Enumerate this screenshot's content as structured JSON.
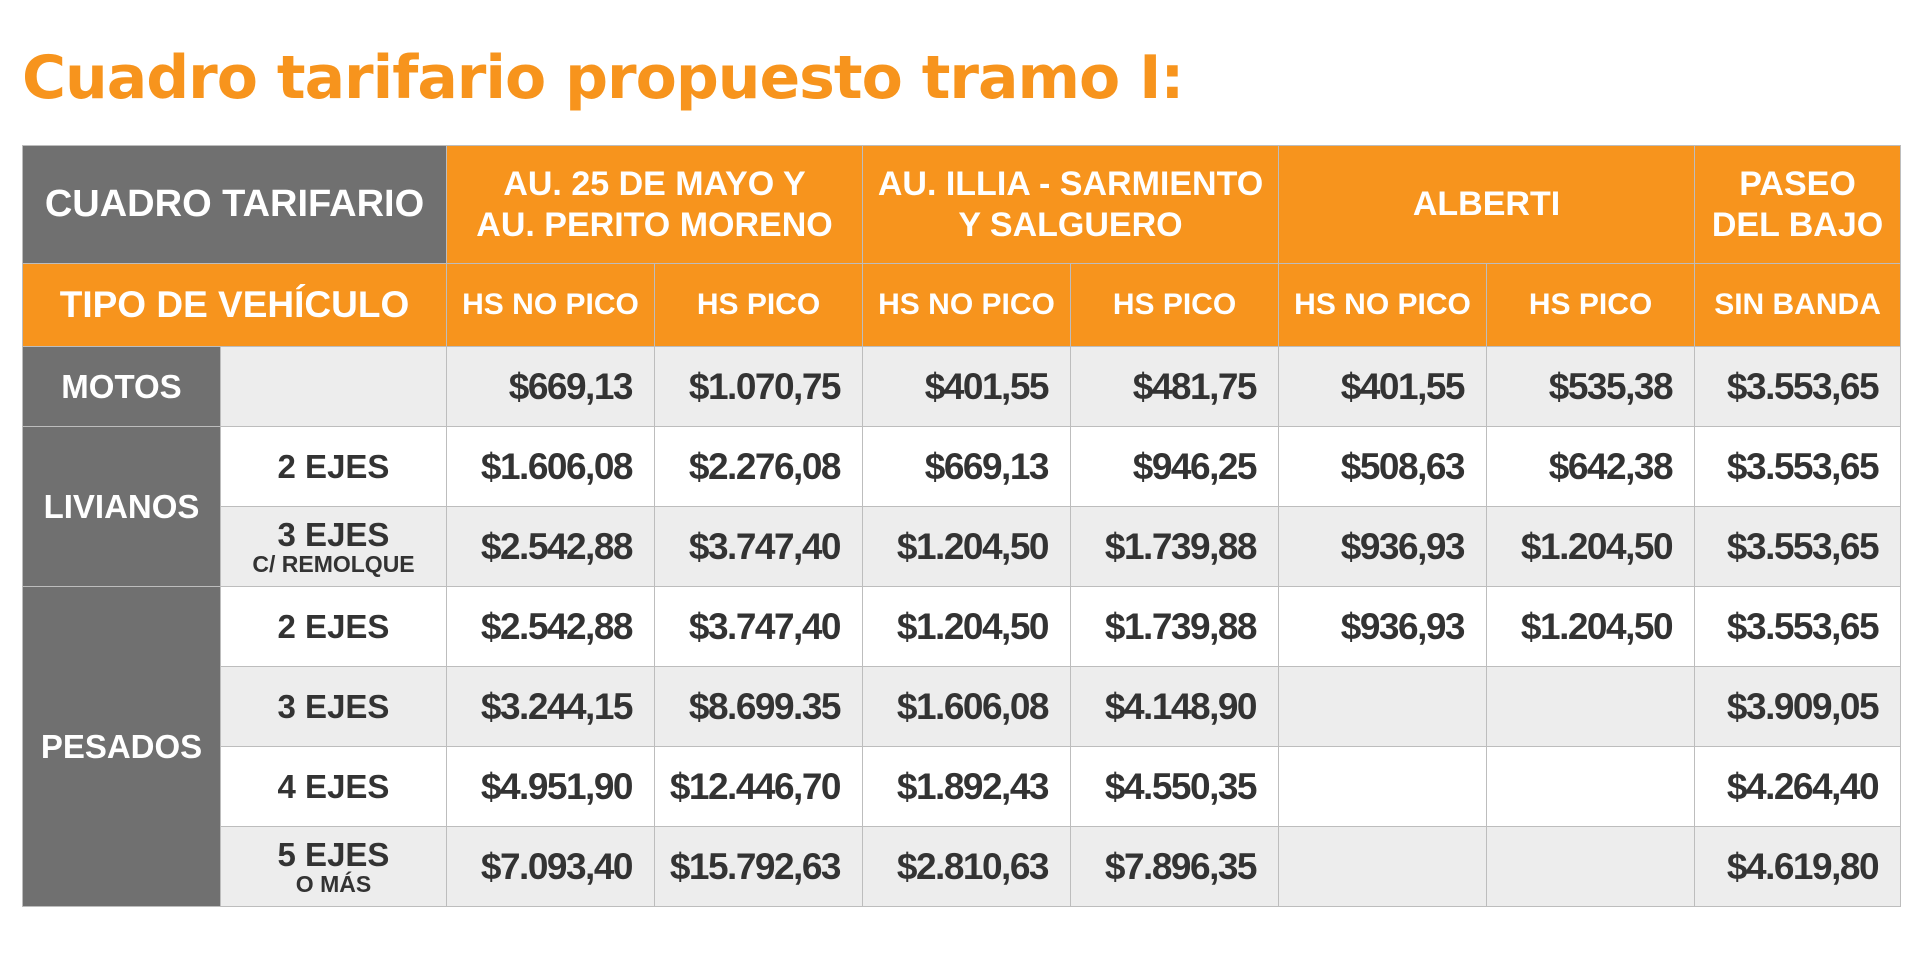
{
  "title": "Cuadro tarifario propuesto tramo I:",
  "header": {
    "corner_label": "CUADRO TARIFARIO",
    "type_label": "TIPO DE VEHÍCULO",
    "groups": [
      {
        "line1": "AU. 25 DE MAYO Y",
        "line2": "AU. PERITO MORENO"
      },
      {
        "line1": "AU. ILLIA - SARMIENTO",
        "line2": "Y SALGUERO"
      },
      {
        "line1": "ALBERTI",
        "line2": ""
      },
      {
        "line1": "PASEO",
        "line2": "DEL BAJO"
      }
    ],
    "subheaders": [
      "HS NO PICO",
      "HS PICO",
      "HS NO PICO",
      "HS PICO",
      "HS NO PICO",
      "HS PICO",
      "SIN BANDA"
    ]
  },
  "categories": {
    "motos": "MOTOS",
    "livianos": "LIVIANOS",
    "pesados": "PESADOS"
  },
  "rows": [
    {
      "sub": "",
      "note": "",
      "values": [
        "$669,13",
        "$1.070,75",
        "$401,55",
        "$481,75",
        "$401,55",
        "$535,38",
        "$3.553,65"
      ]
    },
    {
      "sub": "2 EJES",
      "note": "",
      "values": [
        "$1.606,08",
        "$2.276,08",
        "$669,13",
        "$946,25",
        "$508,63",
        "$642,38",
        "$3.553,65"
      ]
    },
    {
      "sub": "3 EJES",
      "note": "C/ REMOLQUE",
      "values": [
        "$2.542,88",
        "$3.747,40",
        "$1.204,50",
        "$1.739,88",
        "$936,93",
        "$1.204,50",
        "$3.553,65"
      ]
    },
    {
      "sub": "2 EJES",
      "note": "",
      "values": [
        "$2.542,88",
        "$3.747,40",
        "$1.204,50",
        "$1.739,88",
        "$936,93",
        "$1.204,50",
        "$3.553,65"
      ]
    },
    {
      "sub": "3 EJES",
      "note": "",
      "values": [
        "$3.244,15",
        "$8.699.35",
        "$1.606,08",
        "$4.148,90",
        "",
        "",
        "$3.909,05"
      ]
    },
    {
      "sub": "4 EJES",
      "note": "",
      "values": [
        "$4.951,90",
        "$12.446,70",
        "$1.892,43",
        "$4.550,35",
        "",
        "",
        "$4.264,40"
      ]
    },
    {
      "sub": "5 EJES",
      "note": "O MÁS",
      "values": [
        "$7.093,40",
        "$15.792,63",
        "$2.810,63",
        "$7.896,35",
        "",
        "",
        "$4.619,80"
      ]
    }
  ],
  "colors": {
    "accent_orange": "#F7941D",
    "header_gray": "#707070",
    "row_alt": "#EDEDED"
  }
}
